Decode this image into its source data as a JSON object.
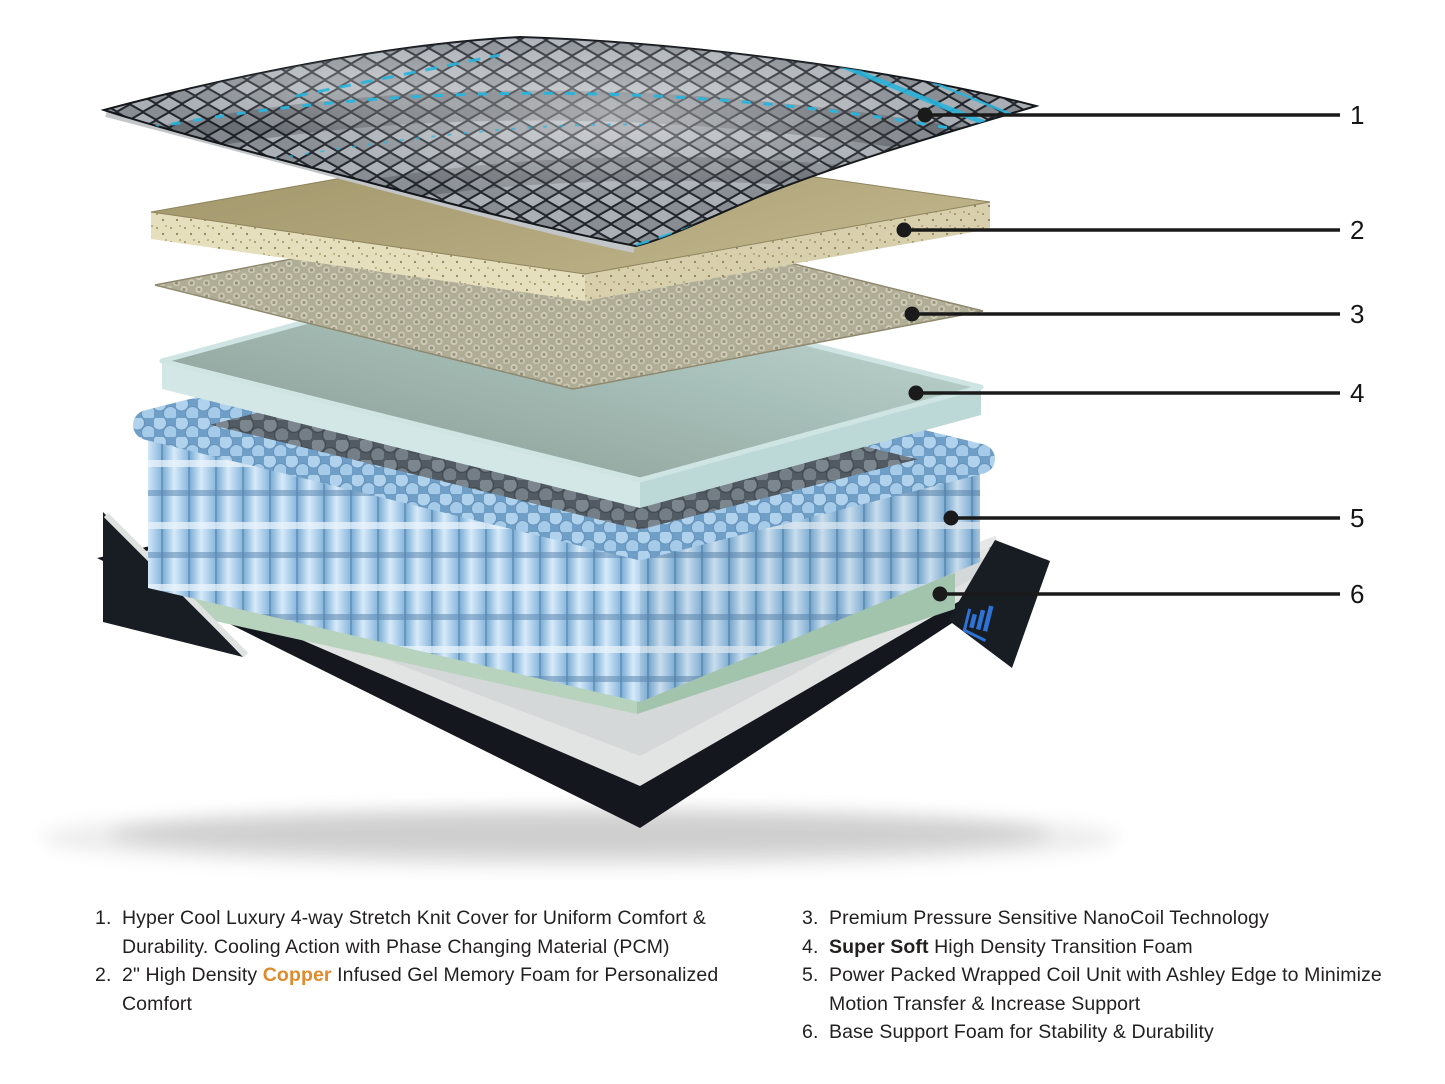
{
  "page": {
    "background": "#ffffff"
  },
  "callouts": [
    {
      "label": "1"
    },
    {
      "label": "2"
    },
    {
      "label": "3"
    },
    {
      "label": "4"
    },
    {
      "label": "5"
    },
    {
      "label": "6"
    }
  ],
  "legend": {
    "left": [
      {
        "number": "1.",
        "segments": [
          {
            "text": "Hyper Cool Luxury 4-way Stretch Knit Cover for Uniform Comfort & Durability. Cooling Action with Phase Changing Material (PCM)"
          }
        ]
      },
      {
        "number": "2.",
        "segments": [
          {
            "text": "2\" High Density "
          },
          {
            "text": "Copper",
            "style": "copper"
          },
          {
            "text": " Infused Gel Memory Foam for Personalized Comfort"
          }
        ]
      }
    ],
    "right": [
      {
        "number": "3.",
        "segments": [
          {
            "text": "Premium Pressure Sensitive NanoCoil Technology"
          }
        ]
      },
      {
        "number": "4.",
        "segments": [
          {
            "text": "Super Soft",
            "style": "bold"
          },
          {
            "text": " High Density Transition Foam"
          }
        ]
      },
      {
        "number": "5.",
        "segments": [
          {
            "text": "Power Packed Wrapped Coil Unit with Ashley Edge to Minimize Motion Transfer & Increase Support"
          }
        ]
      },
      {
        "number": "6.",
        "segments": [
          {
            "text": "Base Support Foam for Stability & Durability"
          }
        ]
      }
    ]
  },
  "icons": {
    "base_logo": "brand-logo-icon"
  },
  "colors": {
    "accent_teal": "#29b4dc",
    "copper": "#df8a2c",
    "text": "#221f1f",
    "cover_dark": "#22252b",
    "memory_foam_tan": "#b3a87e",
    "nanocoil_khaki": "#aaa68e",
    "transition_foam": "#aecac7",
    "coil_blue": "#a8cbe8",
    "coil_top_grey": "#6e7984",
    "base_foam_green": "#bedcc6",
    "base_shell_black": "#14171d",
    "base_rim_silver": "#e1e4e3",
    "logo_blue": "#2d72d4"
  }
}
